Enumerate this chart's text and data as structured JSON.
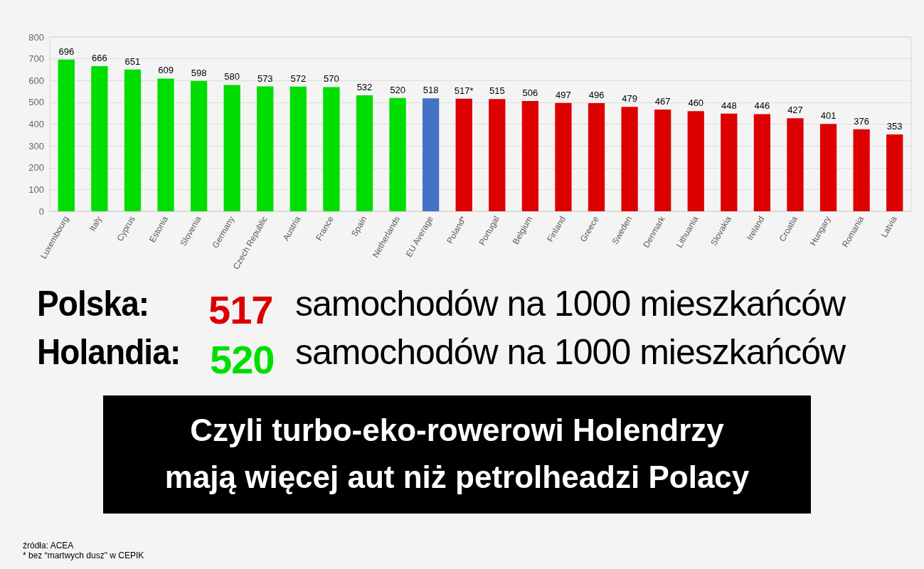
{
  "chart_data": {
    "type": "bar",
    "categories": [
      "Luxembourg",
      "Italy",
      "Cyprus",
      "Estonia",
      "Slovenia",
      "Germany",
      "Czech Republic",
      "Austria",
      "France",
      "Spain",
      "Netherlands",
      "EU Average",
      "Poland*",
      "Portugal",
      "Belgium",
      "Finland",
      "Greece",
      "Sweden",
      "Denmark",
      "Lithuania",
      "Slovakia",
      "Ireland",
      "Croatia",
      "Hungary",
      "Romania",
      "Latvia"
    ],
    "values": [
      696,
      666,
      651,
      609,
      598,
      580,
      573,
      572,
      570,
      532,
      520,
      518,
      517,
      515,
      506,
      497,
      496,
      479,
      467,
      460,
      448,
      446,
      427,
      401,
      376,
      353
    ],
    "value_labels": [
      "696",
      "666",
      "651",
      "609",
      "598",
      "580",
      "573",
      "572",
      "570",
      "532",
      "520",
      "518",
      "517*",
      "515",
      "506",
      "497",
      "496",
      "479",
      "467",
      "460",
      "448",
      "446",
      "427",
      "401",
      "376",
      "353"
    ],
    "colors": [
      "#00dd00",
      "#00dd00",
      "#00dd00",
      "#00dd00",
      "#00dd00",
      "#00dd00",
      "#00dd00",
      "#00dd00",
      "#00dd00",
      "#00dd00",
      "#00dd00",
      "#4472c4",
      "#dd0000",
      "#dd0000",
      "#dd0000",
      "#dd0000",
      "#dd0000",
      "#dd0000",
      "#dd0000",
      "#dd0000",
      "#dd0000",
      "#dd0000",
      "#dd0000",
      "#dd0000",
      "#dd0000",
      "#dd0000"
    ],
    "ylim": [
      0,
      800
    ],
    "yticks": [
      0,
      100,
      200,
      300,
      400,
      500,
      600,
      700,
      800
    ],
    "grid": "y",
    "annotations": [
      "Polska:",
      "517",
      "samochodów na 1000 mieszkańców",
      "Holandia:",
      "520",
      "samochodów na 1000 mieszkańców",
      "Czyli turbo-eko-rowerowi Holendrzy",
      "mają więcej aut niż petrolheadzi Polacy",
      "źródła: ACEA",
      "* bez “martwych dusz\" w CEPIK"
    ]
  }
}
